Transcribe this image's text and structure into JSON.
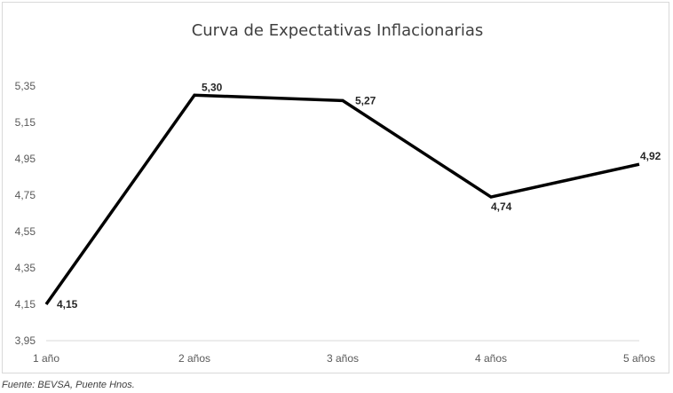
{
  "chart_data": {
    "type": "line",
    "title": "Curva de Expectativas Inflacionarias",
    "xlabel": "",
    "ylabel": "",
    "categories": [
      "1 año",
      "2 años",
      "3 años",
      "4 años",
      "5 años"
    ],
    "series": [
      {
        "values": [
          4.15,
          5.3,
          5.27,
          4.74,
          4.92
        ],
        "labels": [
          "4,15",
          "5,30",
          "5,27",
          "4,74",
          "4,92"
        ],
        "color": "#000000"
      }
    ],
    "ylim": [
      3.95,
      5.35
    ],
    "yticks": [
      "3,95",
      "4,15",
      "4,35",
      "4,55",
      "4,75",
      "4,95",
      "5,15",
      "5,35"
    ],
    "grid": false,
    "legend": "none"
  },
  "source": "Fuente: BEVSA, Puente Hnos."
}
